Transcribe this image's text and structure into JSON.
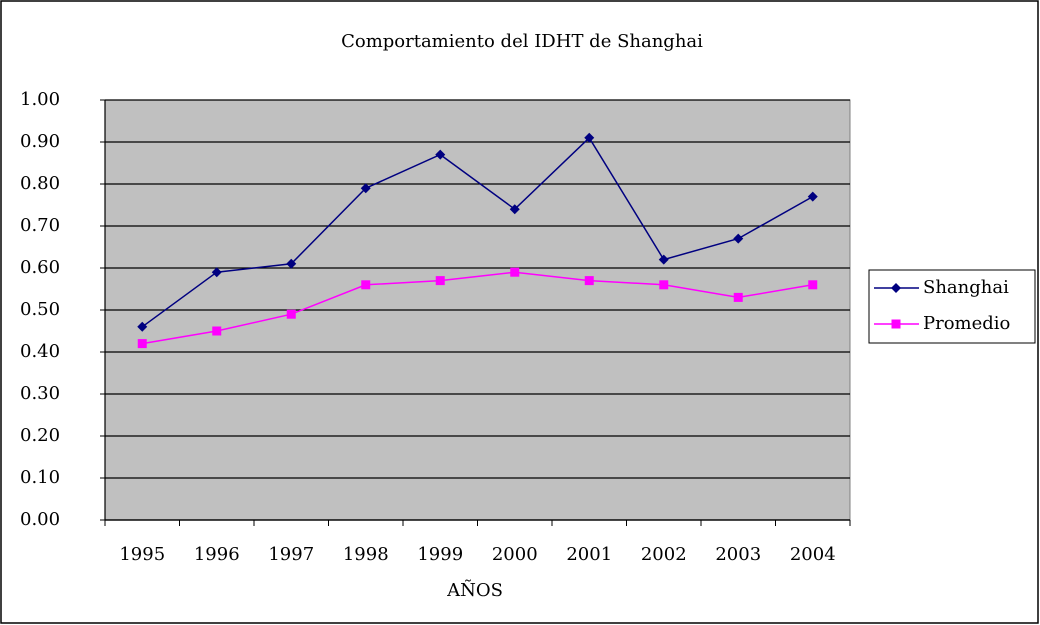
{
  "chart_data": {
    "type": "line",
    "title": "Comportamiento del IDHT de Shanghai",
    "x_label": "AÑOS",
    "categories": [
      "1995",
      "1996",
      "1997",
      "1998",
      "1999",
      "2000",
      "2001",
      "2002",
      "2003",
      "2004"
    ],
    "series": [
      {
        "name": "Shanghai",
        "color": "#000080",
        "marker": "diamond",
        "values": [
          0.46,
          0.59,
          0.61,
          0.79,
          0.87,
          0.74,
          0.91,
          0.62,
          0.67,
          0.77
        ]
      },
      {
        "name": "Promedio",
        "color": "#ff00ff",
        "marker": "square",
        "values": [
          0.42,
          0.45,
          0.49,
          0.56,
          0.57,
          0.59,
          0.57,
          0.56,
          0.53,
          0.56
        ]
      }
    ],
    "ylim": [
      0,
      1
    ],
    "yticks": [
      {
        "value": 0,
        "label": "0.00"
      },
      {
        "value": 0.1,
        "label": "0.10"
      },
      {
        "value": 0.2,
        "label": "0.20"
      },
      {
        "value": 0.3,
        "label": "0.30"
      },
      {
        "value": 0.4,
        "label": "0.40"
      },
      {
        "value": 0.5,
        "label": "0.50"
      },
      {
        "value": 0.6,
        "label": "0.60"
      },
      {
        "value": 0.7,
        "label": "0.70"
      },
      {
        "value": 0.8,
        "label": "0.80"
      },
      {
        "value": 0.9,
        "label": "0.90"
      },
      {
        "value": 1,
        "label": "1.00"
      }
    ],
    "grid": true,
    "plot_background": "#c0c0c0",
    "legend": "right"
  }
}
